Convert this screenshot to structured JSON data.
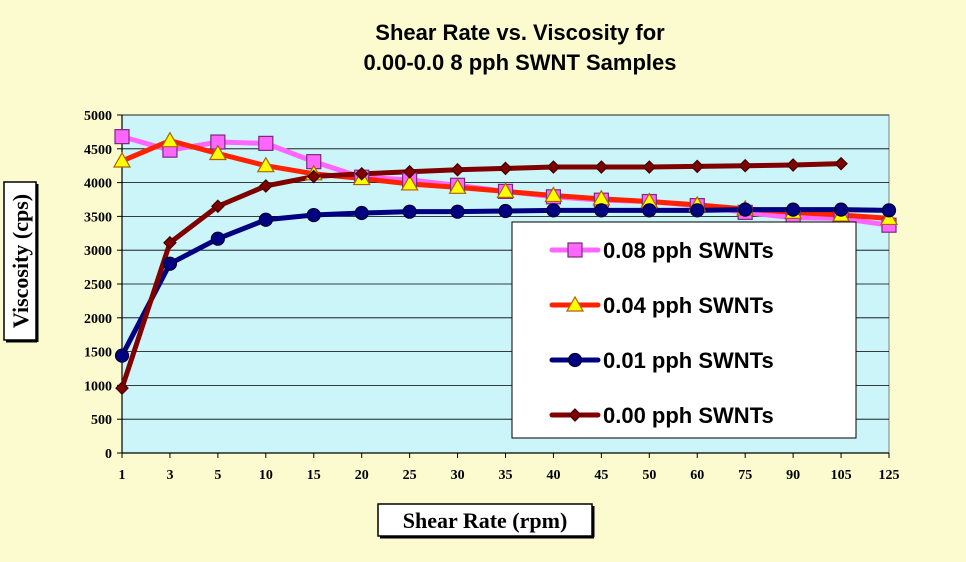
{
  "chart_data": {
    "type": "line",
    "title_lines": [
      "Shear Rate vs. Viscosity for",
      "0.00-0.0 8 pph SWNT Samples"
    ],
    "xlabel": "Shear Rate (rpm)",
    "ylabel": "Viscosity (cps)",
    "categories": [
      "1",
      "3",
      "5",
      "10",
      "15",
      "20",
      "25",
      "30",
      "35",
      "40",
      "45",
      "50",
      "60",
      "75",
      "90",
      "105",
      "125"
    ],
    "ylim": [
      0,
      5000
    ],
    "yticks": [
      0,
      500,
      1000,
      1500,
      2000,
      2500,
      3000,
      3500,
      4000,
      4500,
      5000
    ],
    "grid": true,
    "legend_position": "inside-right",
    "plot_background": "#ccf5f9",
    "series": [
      {
        "name": "0.08 pph SWNTs",
        "line_color": "#ff66ff",
        "marker": "square",
        "marker_fill": "#ff66ff",
        "marker_stroke": "#7a2a7a",
        "values": [
          4680,
          4480,
          4600,
          4580,
          4310,
          4080,
          4040,
          3960,
          3870,
          3790,
          3740,
          3720,
          3660,
          3560,
          3480,
          3470,
          3370
        ]
      },
      {
        "name": "0.04 pph SWNTs",
        "line_color": "#ff2200",
        "marker": "triangle",
        "marker_fill": "#ffff00",
        "marker_stroke": "#b06000",
        "values": [
          4320,
          4620,
          4430,
          4250,
          4130,
          4060,
          3980,
          3930,
          3870,
          3810,
          3760,
          3720,
          3670,
          3610,
          3560,
          3520,
          3470
        ]
      },
      {
        "name": "0.01 pph SWNTs",
        "line_color": "#000080",
        "marker": "circle",
        "marker_fill": "#000080",
        "marker_stroke": "#000030",
        "values": [
          1440,
          2800,
          3170,
          3450,
          3520,
          3550,
          3570,
          3570,
          3580,
          3590,
          3590,
          3590,
          3590,
          3600,
          3600,
          3600,
          3590
        ]
      },
      {
        "name": "0.00 pph SWNTs",
        "line_color": "#800000",
        "marker": "diamond",
        "marker_fill": "#800000",
        "marker_stroke": "#400000",
        "values": [
          960,
          3110,
          3650,
          3950,
          4090,
          4130,
          4160,
          4190,
          4210,
          4230,
          4230,
          4230,
          4240,
          4250,
          4260,
          4280,
          null
        ]
      }
    ]
  }
}
